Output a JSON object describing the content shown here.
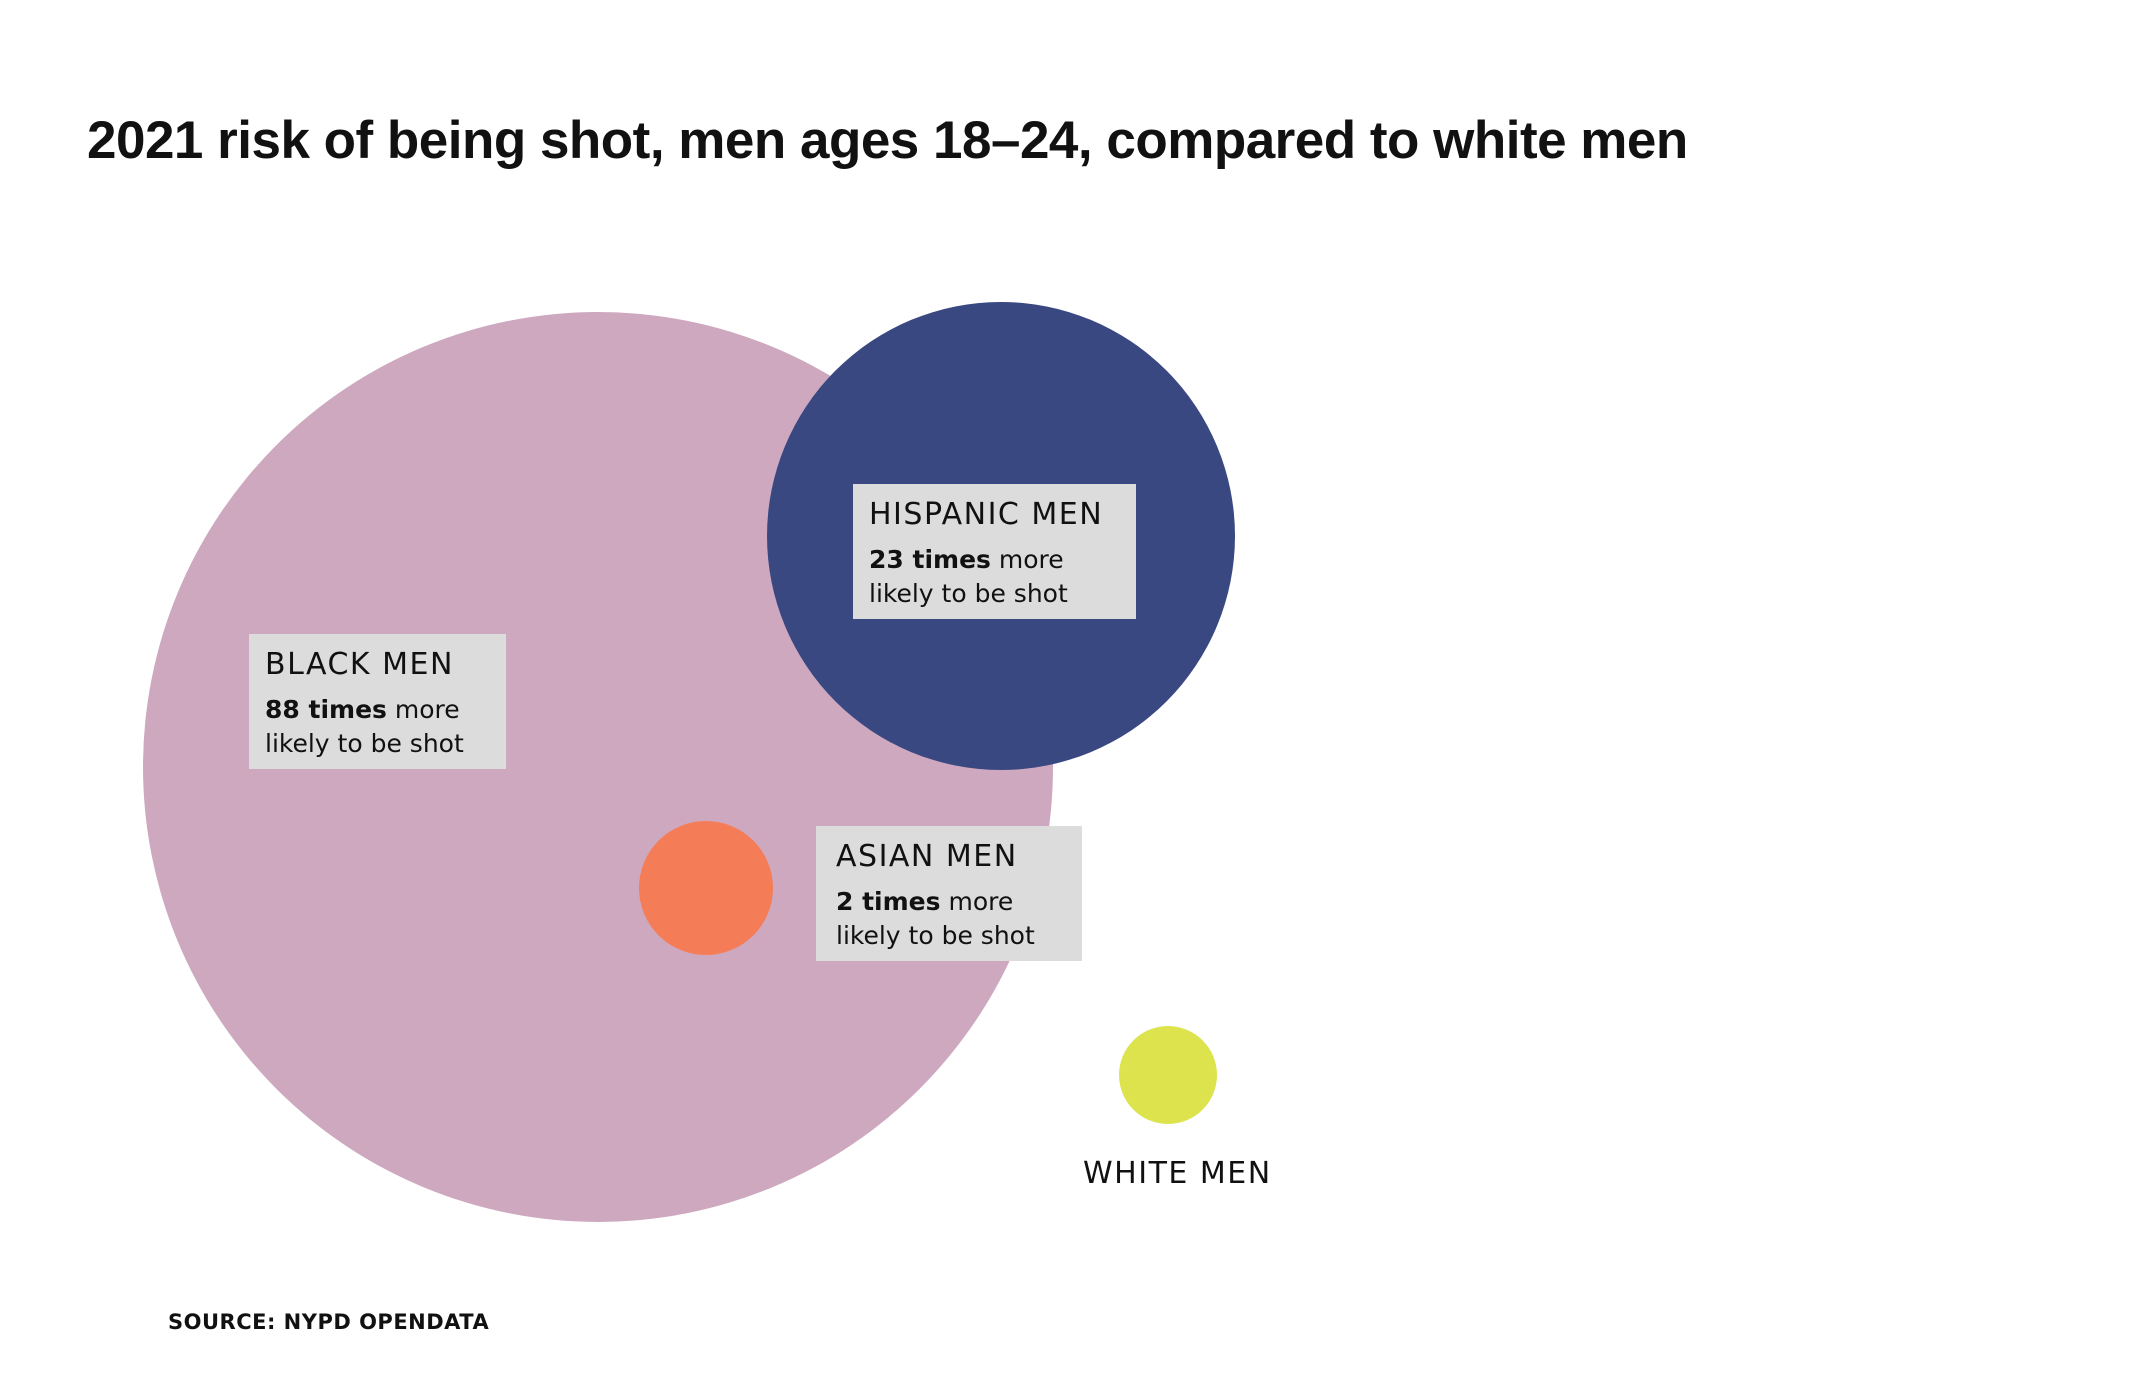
{
  "chart_data": {
    "type": "bubble",
    "title": "2021 risk of being shot, men ages 18–24, compared to white men",
    "series": [
      {
        "name": "BLACK MEN",
        "value": 88,
        "value_text": "88 times",
        "suffix_1": "more",
        "suffix_2": "likely to be shot",
        "color": "#cda8bf"
      },
      {
        "name": "HISPANIC MEN",
        "value": 23,
        "value_text": "23 times",
        "suffix_1": "more",
        "suffix_2": "likely to be shot",
        "color": "#3a4882"
      },
      {
        "name": "ASIAN MEN",
        "value": 2,
        "value_text": "2 times",
        "suffix_1": "more",
        "suffix_2": "likely to be shot",
        "color": "#f47d58"
      },
      {
        "name": "WHITE MEN",
        "value": 1,
        "color": "#dce34d"
      }
    ],
    "label_box_color": "#dcdcdc"
  },
  "source": "SOURCE: NYPD OPENDATA"
}
